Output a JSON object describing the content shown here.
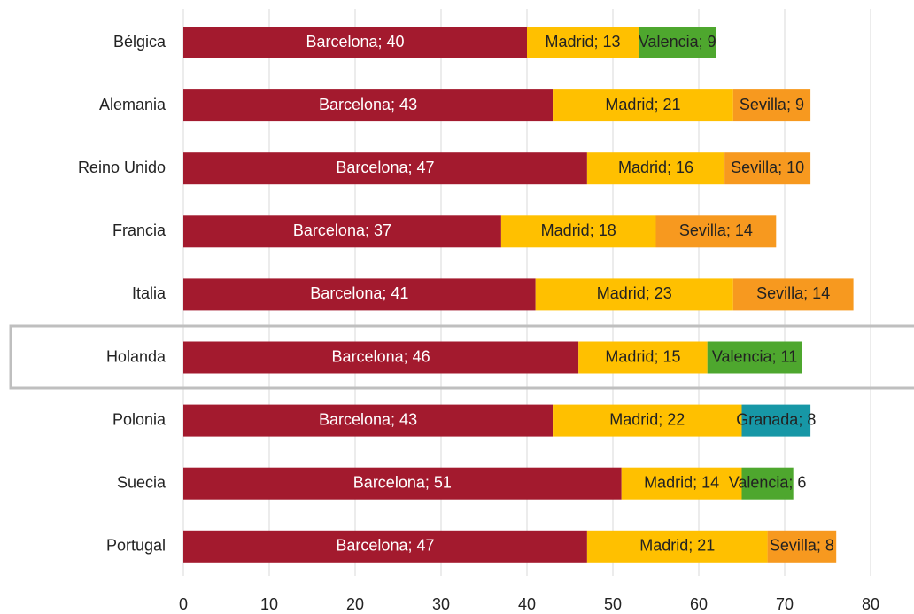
{
  "chart_data": {
    "type": "stacked_barh",
    "categories": [
      "Bélgica",
      "Alemania",
      "Reino Unido",
      "Francia",
      "Italia",
      "Holanda",
      "Polonia",
      "Suecia",
      "Portugal"
    ],
    "series": [
      {
        "name": "Barcelona",
        "color": "#a31a2e",
        "values": [
          40,
          43,
          47,
          37,
          41,
          46,
          43,
          51,
          47
        ],
        "value_labels": [
          "Barcelona; 40",
          "Barcelona; 43",
          "Barcelona; 47",
          "Barcelona; 37",
          "Barcelona; 41",
          "Barcelona; 46",
          "Barcelona; 43",
          "Barcelona; 51",
          "Barcelona; 47"
        ]
      },
      {
        "name": "Madrid",
        "color": "#ffc000",
        "values": [
          13,
          21,
          16,
          18,
          23,
          15,
          22,
          14,
          21
        ],
        "value_labels": [
          "Madrid; 13",
          "Madrid; 21",
          "Madrid; 16",
          "Madrid; 18",
          "Madrid; 23",
          "Madrid; 15",
          "Madrid; 22",
          "Madrid; 14",
          "Madrid; 21"
        ]
      },
      {
        "name": "Valencia",
        "color": "#4ea72e",
        "values": [
          9,
          null,
          null,
          null,
          null,
          11,
          null,
          6,
          null
        ],
        "value_labels": [
          "Valencia; 9",
          null,
          null,
          null,
          null,
          "Valencia; 11",
          null,
          "Valencia; 6",
          null
        ]
      },
      {
        "name": "Sevilla",
        "color": "#f7991f",
        "values": [
          null,
          9,
          10,
          14,
          14,
          null,
          null,
          null,
          8
        ],
        "value_labels": [
          null,
          "Sevilla; 9",
          "Sevilla; 10",
          "Sevilla; 14",
          "Sevilla; 14",
          null,
          null,
          null,
          "Sevilla; 8"
        ]
      },
      {
        "name": "Granada",
        "color": "#1797a6",
        "values": [
          null,
          null,
          null,
          null,
          null,
          null,
          8,
          null,
          null
        ],
        "value_labels": [
          null,
          null,
          null,
          null,
          null,
          null,
          "Granada; 8",
          null,
          null
        ]
      }
    ],
    "xlim": [
      0,
      80
    ],
    "xticks": [
      0,
      10,
      20,
      30,
      40,
      50,
      60,
      70,
      80
    ],
    "grid": true
  }
}
